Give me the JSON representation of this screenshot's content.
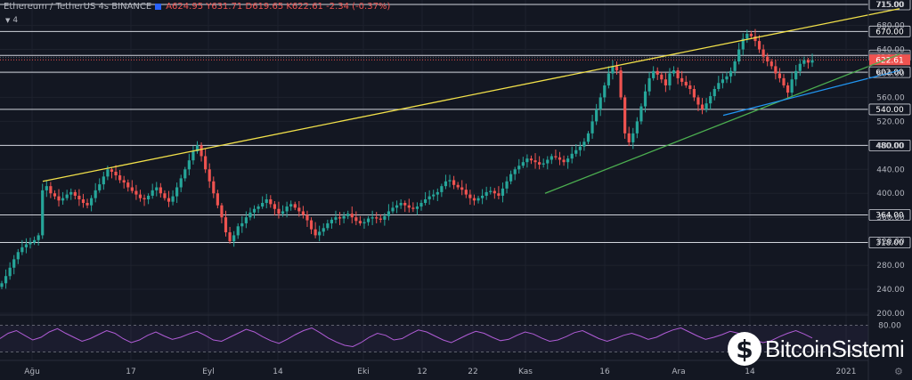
{
  "header": {
    "symbol": "Ethereum / TetherUS",
    "interval": "4s",
    "exchange": "BINANCE",
    "ohlc": "A624.95 Y631.71 D619.65 K622.61 -2.34 (-0.37%)"
  },
  "indicator": {
    "label": "4"
  },
  "logo": {
    "coin_glyph": "$",
    "text": "BitcoinSistemi",
    "icon": "bitcoin-sistemi-logo-icon"
  },
  "settings": {
    "icon": "gear-icon",
    "glyph": "⚙"
  },
  "chart_data": {
    "type": "candlestick",
    "y_ticks": [
      200,
      240,
      280,
      320,
      360,
      400,
      440,
      480,
      520,
      560,
      600,
      640,
      680,
      715
    ],
    "x_ticks": [
      "Ağu",
      "17",
      "Eyl",
      "14",
      "Eki",
      "12",
      "22",
      "Kas",
      "16",
      "Ara",
      "14",
      "2021"
    ],
    "horizontal_levels": [
      {
        "value": 715.0,
        "label": "715.00"
      },
      {
        "value": 670.0,
        "label": "670.00"
      },
      {
        "value": 630.0,
        "label": "630.00"
      },
      {
        "value": 602.0,
        "label": "602.00"
      },
      {
        "value": 540.0,
        "label": "540.00"
      },
      {
        "value": 480.0,
        "label": "480.00"
      },
      {
        "value": 364.0,
        "label": "364.00"
      },
      {
        "value": 318.0,
        "label": "318.00"
      }
    ],
    "price_labels": [
      {
        "value": 626.82,
        "label": "626.82",
        "color": "#5d606b"
      },
      {
        "value": 622.61,
        "label": "622.61",
        "color": "#ef5350"
      }
    ],
    "trendlines": [
      {
        "color": "#f2e14a",
        "from": [
          "Ağu",
          420
        ],
        "to": [
          "2021",
          708
        ]
      },
      {
        "color": "#4caf50",
        "from": [
          "Kas",
          400
        ],
        "to": [
          "2021",
          632
        ]
      },
      {
        "color": "#2196f3",
        "from": [
          "Ara",
          530
        ],
        "to": [
          "2021",
          605
        ]
      }
    ],
    "closes": [
      250,
      262,
      276,
      290,
      302,
      310,
      315,
      318,
      322,
      330,
      405,
      412,
      400,
      395,
      388,
      392,
      398,
      402,
      396,
      390,
      384,
      380,
      392,
      405,
      415,
      428,
      440,
      436,
      430,
      422,
      418,
      410,
      404,
      398,
      392,
      390,
      396,
      405,
      410,
      400,
      392,
      386,
      395,
      410,
      425,
      440,
      455,
      470,
      480,
      462,
      440,
      420,
      400,
      380,
      360,
      335,
      320,
      330,
      345,
      350,
      360,
      368,
      374,
      378,
      384,
      390,
      382,
      374,
      366,
      370,
      378,
      382,
      376,
      370,
      364,
      355,
      340,
      330,
      336,
      342,
      350,
      356,
      360,
      358,
      362,
      366,
      360,
      354,
      350,
      352,
      358,
      360,
      358,
      356,
      362,
      370,
      376,
      380,
      384,
      380,
      376,
      374,
      378,
      384,
      390,
      395,
      398,
      402,
      412,
      420,
      422,
      414,
      410,
      406,
      398,
      392,
      388,
      392,
      396,
      402,
      404,
      400,
      396,
      408,
      420,
      432,
      440,
      446,
      452,
      458,
      455,
      452,
      448,
      450,
      456,
      462,
      460,
      456,
      452,
      458,
      466,
      472,
      478,
      486,
      500,
      520,
      540,
      560,
      580,
      600,
      612,
      605,
      560,
      500,
      485,
      500,
      520,
      545,
      570,
      592,
      604,
      598,
      590,
      580,
      600,
      605,
      592,
      586,
      580,
      574,
      560,
      548,
      540,
      550,
      562,
      574,
      584,
      590,
      595,
      604,
      620,
      640,
      658,
      666,
      662,
      654,
      640,
      628,
      620,
      612,
      600,
      592,
      580,
      568,
      590,
      604,
      616,
      622,
      618,
      622
    ],
    "rsi": {
      "upper": 70,
      "lower": 30,
      "label_upper": "80.00",
      "values": [
        50,
        58,
        62,
        55,
        48,
        52,
        60,
        65,
        58,
        52,
        46,
        50,
        56,
        62,
        58,
        50,
        44,
        48,
        55,
        60,
        54,
        49,
        52,
        57,
        61,
        55,
        48,
        46,
        52,
        58,
        64,
        60,
        53,
        47,
        43,
        49,
        56,
        62,
        66,
        59,
        51,
        45,
        40,
        38,
        44,
        52,
        58,
        55,
        48,
        50,
        57,
        63,
        60,
        54,
        48,
        44,
        50,
        56,
        61,
        58,
        52,
        47,
        49,
        55,
        60,
        57,
        51,
        46,
        48,
        53,
        59,
        62,
        56,
        50,
        46,
        50,
        55,
        58,
        54,
        49,
        52,
        58,
        63,
        66,
        60,
        54,
        49,
        52,
        56,
        61,
        58,
        52,
        48,
        44,
        47,
        53,
        58,
        62,
        57,
        51
      ]
    }
  }
}
